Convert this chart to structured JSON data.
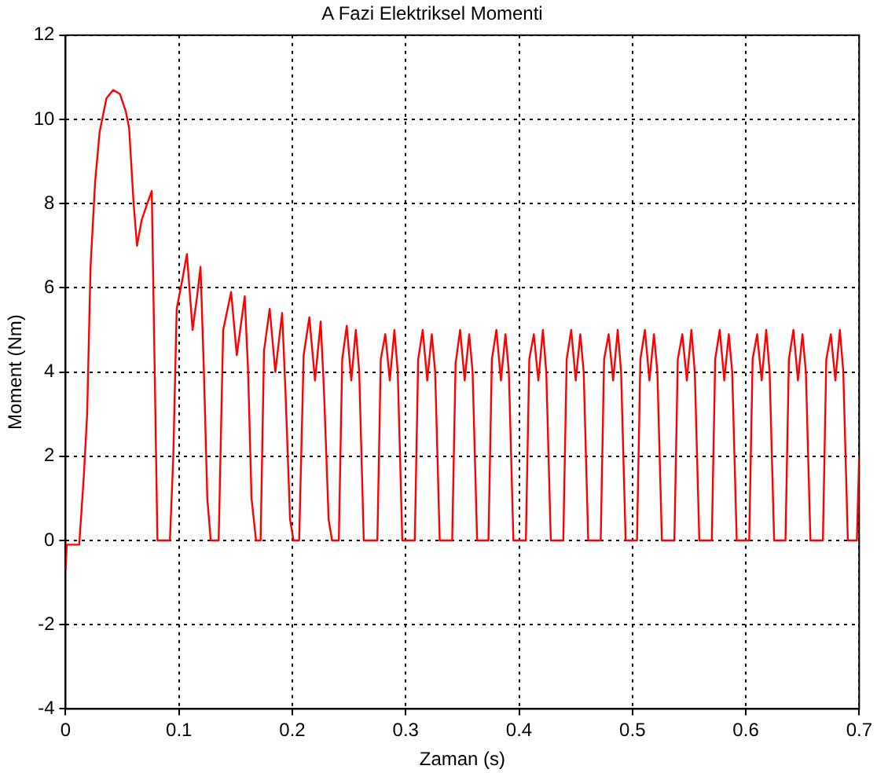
{
  "chart_data": {
    "type": "line",
    "title": "A Fazi Elektriksel Momenti",
    "xlabel": "Zaman (s)",
    "ylabel": "Moment (Nm)",
    "color": "#ff0000",
    "grid": true,
    "xlim": [
      0,
      0.7
    ],
    "ylim": [
      -4,
      12
    ],
    "xticks": [
      0,
      0.1,
      0.2,
      0.3,
      0.4,
      0.5,
      0.6,
      0.7
    ],
    "yticks": [
      -4,
      -2,
      0,
      2,
      4,
      6,
      8,
      10,
      12
    ],
    "x": [
      0,
      0.001,
      0.012,
      0.016,
      0.019,
      0.022,
      0.026,
      0.03,
      0.036,
      0.042,
      0.048,
      0.053,
      0.056,
      0.06,
      0.063,
      0.067,
      0.072,
      0.076,
      0.078,
      0.081,
      0.092,
      0.095,
      0.098,
      0.103,
      0.107,
      0.112,
      0.116,
      0.119,
      0.122,
      0.125,
      0.128,
      0.135,
      0.139,
      0.146,
      0.151,
      0.158,
      0.161,
      0.164,
      0.168,
      0.172,
      0.175,
      0.18,
      0.185,
      0.191,
      0.194,
      0.198,
      0.201,
      0.206,
      0.21,
      0.215,
      0.22,
      0.225,
      0.228,
      0.232,
      0.235,
      0.241,
      0.244,
      0.248,
      0.252,
      0.256,
      0.259,
      0.263,
      0.275,
      0.278,
      0.282,
      0.286,
      0.29,
      0.293,
      0.297,
      0.308,
      0.311,
      0.315,
      0.319,
      0.323,
      0.326,
      0.33,
      0.341,
      0.344,
      0.348,
      0.352,
      0.356,
      0.359,
      0.363,
      0.373,
      0.376,
      0.38,
      0.384,
      0.388,
      0.391,
      0.395,
      0.406,
      0.409,
      0.413,
      0.417,
      0.421,
      0.424,
      0.428,
      0.439,
      0.442,
      0.446,
      0.45,
      0.454,
      0.457,
      0.461,
      0.472,
      0.475,
      0.479,
      0.483,
      0.487,
      0.49,
      0.494,
      0.504,
      0.507,
      0.511,
      0.515,
      0.519,
      0.522,
      0.526,
      0.537,
      0.54,
      0.544,
      0.548,
      0.552,
      0.555,
      0.559,
      0.57,
      0.573,
      0.577,
      0.581,
      0.585,
      0.588,
      0.592,
      0.603,
      0.606,
      0.61,
      0.614,
      0.618,
      0.621,
      0.625,
      0.635,
      0.638,
      0.642,
      0.646,
      0.65,
      0.653,
      0.657,
      0.668,
      0.671,
      0.675,
      0.679,
      0.683,
      0.686,
      0.69,
      0.698,
      0.7
    ],
    "values": [
      -0.7,
      -0.1,
      -0.1,
      1.5,
      3,
      6.5,
      8.5,
      9.7,
      10.5,
      10.7,
      10.6,
      10.2,
      9.8,
      8,
      7.0,
      7.6,
      8.0,
      8.3,
      5,
      0,
      0,
      2,
      5.5,
      6.2,
      6.8,
      5.0,
      5.8,
      6.5,
      4,
      1,
      0,
      0,
      5,
      5.9,
      4.4,
      5.8,
      4,
      1,
      0,
      0,
      4.5,
      5.5,
      4.0,
      5.4,
      3.5,
      0.5,
      0,
      0,
      4.4,
      5.3,
      3.8,
      5.2,
      3.5,
      0.5,
      0,
      0,
      4.3,
      5.1,
      3.8,
      5.0,
      4.0,
      0,
      0,
      4.3,
      4.9,
      3.8,
      5.0,
      4.0,
      0,
      0,
      4.3,
      5.0,
      3.8,
      4.9,
      4.0,
      0,
      0,
      4.2,
      5.0,
      3.8,
      4.9,
      4.0,
      0,
      0,
      4.3,
      5.0,
      3.8,
      4.9,
      4.0,
      0,
      0,
      4.3,
      4.9,
      3.8,
      5.0,
      4.0,
      0,
      0,
      4.3,
      5.0,
      3.8,
      4.9,
      4.0,
      0,
      0,
      4.3,
      4.9,
      3.8,
      5.0,
      4.0,
      0,
      0,
      4.3,
      5.0,
      3.8,
      4.9,
      4.0,
      0,
      0,
      4.3,
      4.9,
      3.8,
      5.0,
      4.0,
      0,
      0,
      4.3,
      5.0,
      3.8,
      4.9,
      4.0,
      0,
      0,
      4.3,
      4.9,
      3.8,
      5.0,
      4.0,
      0,
      0,
      4.3,
      5.0,
      3.8,
      4.9,
      4.0,
      0,
      0,
      4.3,
      4.9,
      3.8,
      5.0,
      4.0,
      0,
      0,
      2.0
    ]
  }
}
